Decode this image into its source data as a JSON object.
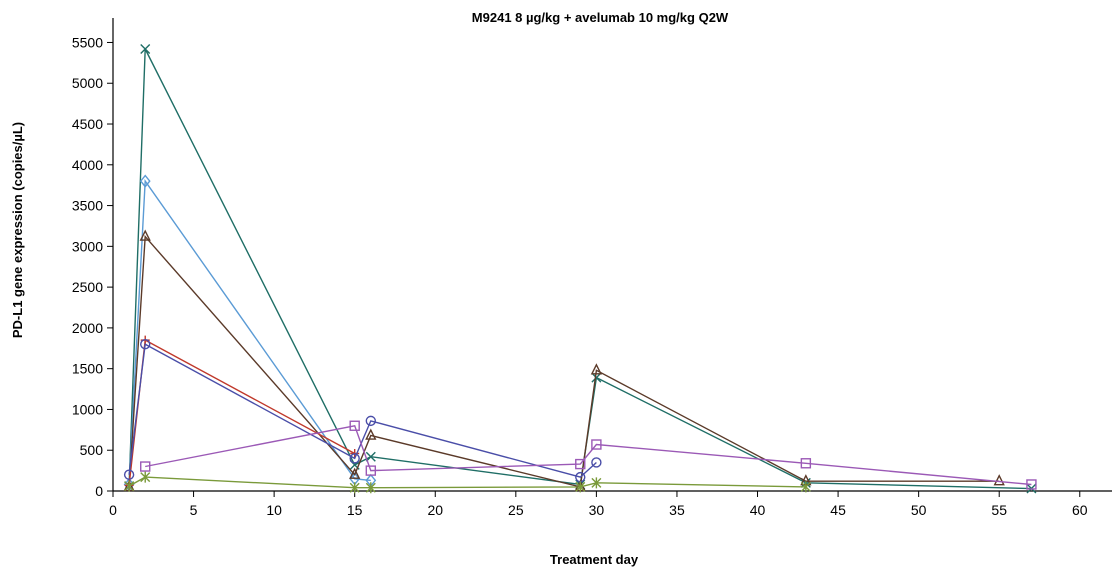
{
  "chart_data": {
    "type": "line",
    "title": "M9241 8 µg/kg + avelumab 10 mg/kg Q2W",
    "xlabel": "Treatment day",
    "ylabel": "PD-L1 gene expression (copies/µL)",
    "xlim": [
      0,
      62
    ],
    "ylim": [
      0,
      5800
    ],
    "xticks": [
      0,
      5,
      10,
      15,
      20,
      25,
      30,
      35,
      40,
      45,
      50,
      55,
      60
    ],
    "yticks": [
      0,
      500,
      1000,
      1500,
      2000,
      2500,
      3000,
      3500,
      4000,
      4500,
      5000,
      5500
    ],
    "grid": false,
    "legend": "none",
    "series": [
      {
        "color": "#1f6e66",
        "marker": "x",
        "points": [
          [
            1,
            60
          ],
          [
            2,
            5420
          ],
          [
            15,
            320
          ],
          [
            16,
            420
          ],
          [
            29,
            80
          ],
          [
            30,
            1390
          ],
          [
            43,
            100
          ],
          [
            57,
            30
          ]
        ]
      },
      {
        "color": "#5b9bd5",
        "marker": "diamond",
        "points": [
          [
            1,
            80
          ],
          [
            2,
            3800
          ],
          [
            15,
            150
          ],
          [
            16,
            130
          ]
        ]
      },
      {
        "color": "#5b3a29",
        "marker": "triangle",
        "points": [
          [
            1,
            50
          ],
          [
            2,
            3120
          ],
          [
            15,
            200
          ],
          [
            16,
            680
          ],
          [
            29,
            50
          ],
          [
            30,
            1480
          ],
          [
            43,
            120
          ],
          [
            55,
            120
          ]
        ]
      },
      {
        "color": "#c0392b",
        "marker": "plus",
        "points": [
          [
            1,
            70
          ],
          [
            2,
            1850
          ],
          [
            15,
            460
          ]
        ]
      },
      {
        "color": "#4a4ea8",
        "marker": "circle",
        "points": [
          [
            1,
            200
          ],
          [
            2,
            1800
          ],
          [
            15,
            400
          ],
          [
            16,
            860
          ],
          [
            29,
            170
          ],
          [
            30,
            350
          ]
        ]
      },
      {
        "color": "#9b59b6",
        "marker": "square",
        "points": [
          [
            2,
            300
          ],
          [
            15,
            800
          ],
          [
            16,
            250
          ],
          [
            29,
            330
          ],
          [
            30,
            570
          ],
          [
            43,
            340
          ],
          [
            57,
            80
          ]
        ]
      },
      {
        "color": "#7a9a3a",
        "marker": "asterisk",
        "points": [
          [
            1,
            60
          ],
          [
            2,
            170
          ],
          [
            15,
            40
          ],
          [
            16,
            40
          ],
          [
            29,
            50
          ],
          [
            30,
            100
          ],
          [
            43,
            50
          ]
        ]
      }
    ]
  }
}
